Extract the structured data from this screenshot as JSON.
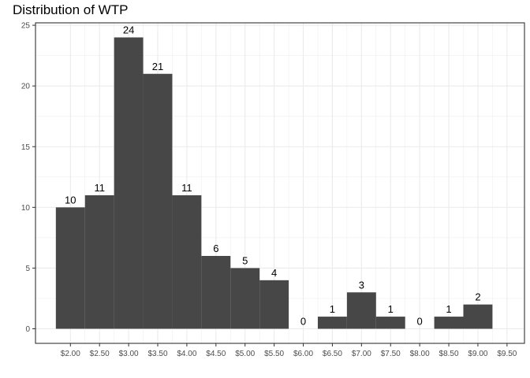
{
  "chart_data": {
    "type": "bar",
    "title": "Distribution of WTP",
    "xlabel": "",
    "ylabel": "",
    "bin_width": 0.5,
    "bin_centers": [
      2.0,
      2.5,
      3.0,
      3.5,
      4.0,
      4.5,
      5.0,
      5.5,
      6.0,
      6.5,
      7.0,
      7.5,
      8.0,
      8.5,
      9.0
    ],
    "values": [
      10,
      11,
      24,
      21,
      11,
      6,
      5,
      4,
      0,
      1,
      3,
      1,
      0,
      1,
      2
    ],
    "data_labels": [
      "10",
      "11",
      "24",
      "21",
      "11",
      "6",
      "5",
      "4",
      "0",
      "1",
      "3",
      "1",
      "0",
      "1",
      "2"
    ],
    "x_ticks": [
      2.0,
      2.5,
      3.0,
      3.5,
      4.0,
      4.5,
      5.0,
      5.5,
      6.0,
      6.5,
      7.0,
      7.5,
      8.0,
      8.5,
      9.0,
      9.5
    ],
    "x_tick_labels": [
      "$2.00",
      "$2.50",
      "$3.00",
      "$3.50",
      "$4.00",
      "$4.50",
      "$5.00",
      "$5.50",
      "$6.00",
      "$6.50",
      "$7.00",
      "$7.50",
      "$8.00",
      "$8.50",
      "$9.00",
      "$9.50"
    ],
    "y_ticks": [
      0,
      5,
      10,
      15,
      20,
      25
    ],
    "y_tick_labels": [
      "0",
      "5",
      "10",
      "15",
      "20",
      "25"
    ],
    "xlim": [
      1.4,
      9.8
    ],
    "ylim": [
      -1.2,
      25.2
    ],
    "grid": true,
    "bar_color": "#474747",
    "background_color": "#ffffff",
    "grid_color": "#ebebeb",
    "border_color": "#333333"
  }
}
